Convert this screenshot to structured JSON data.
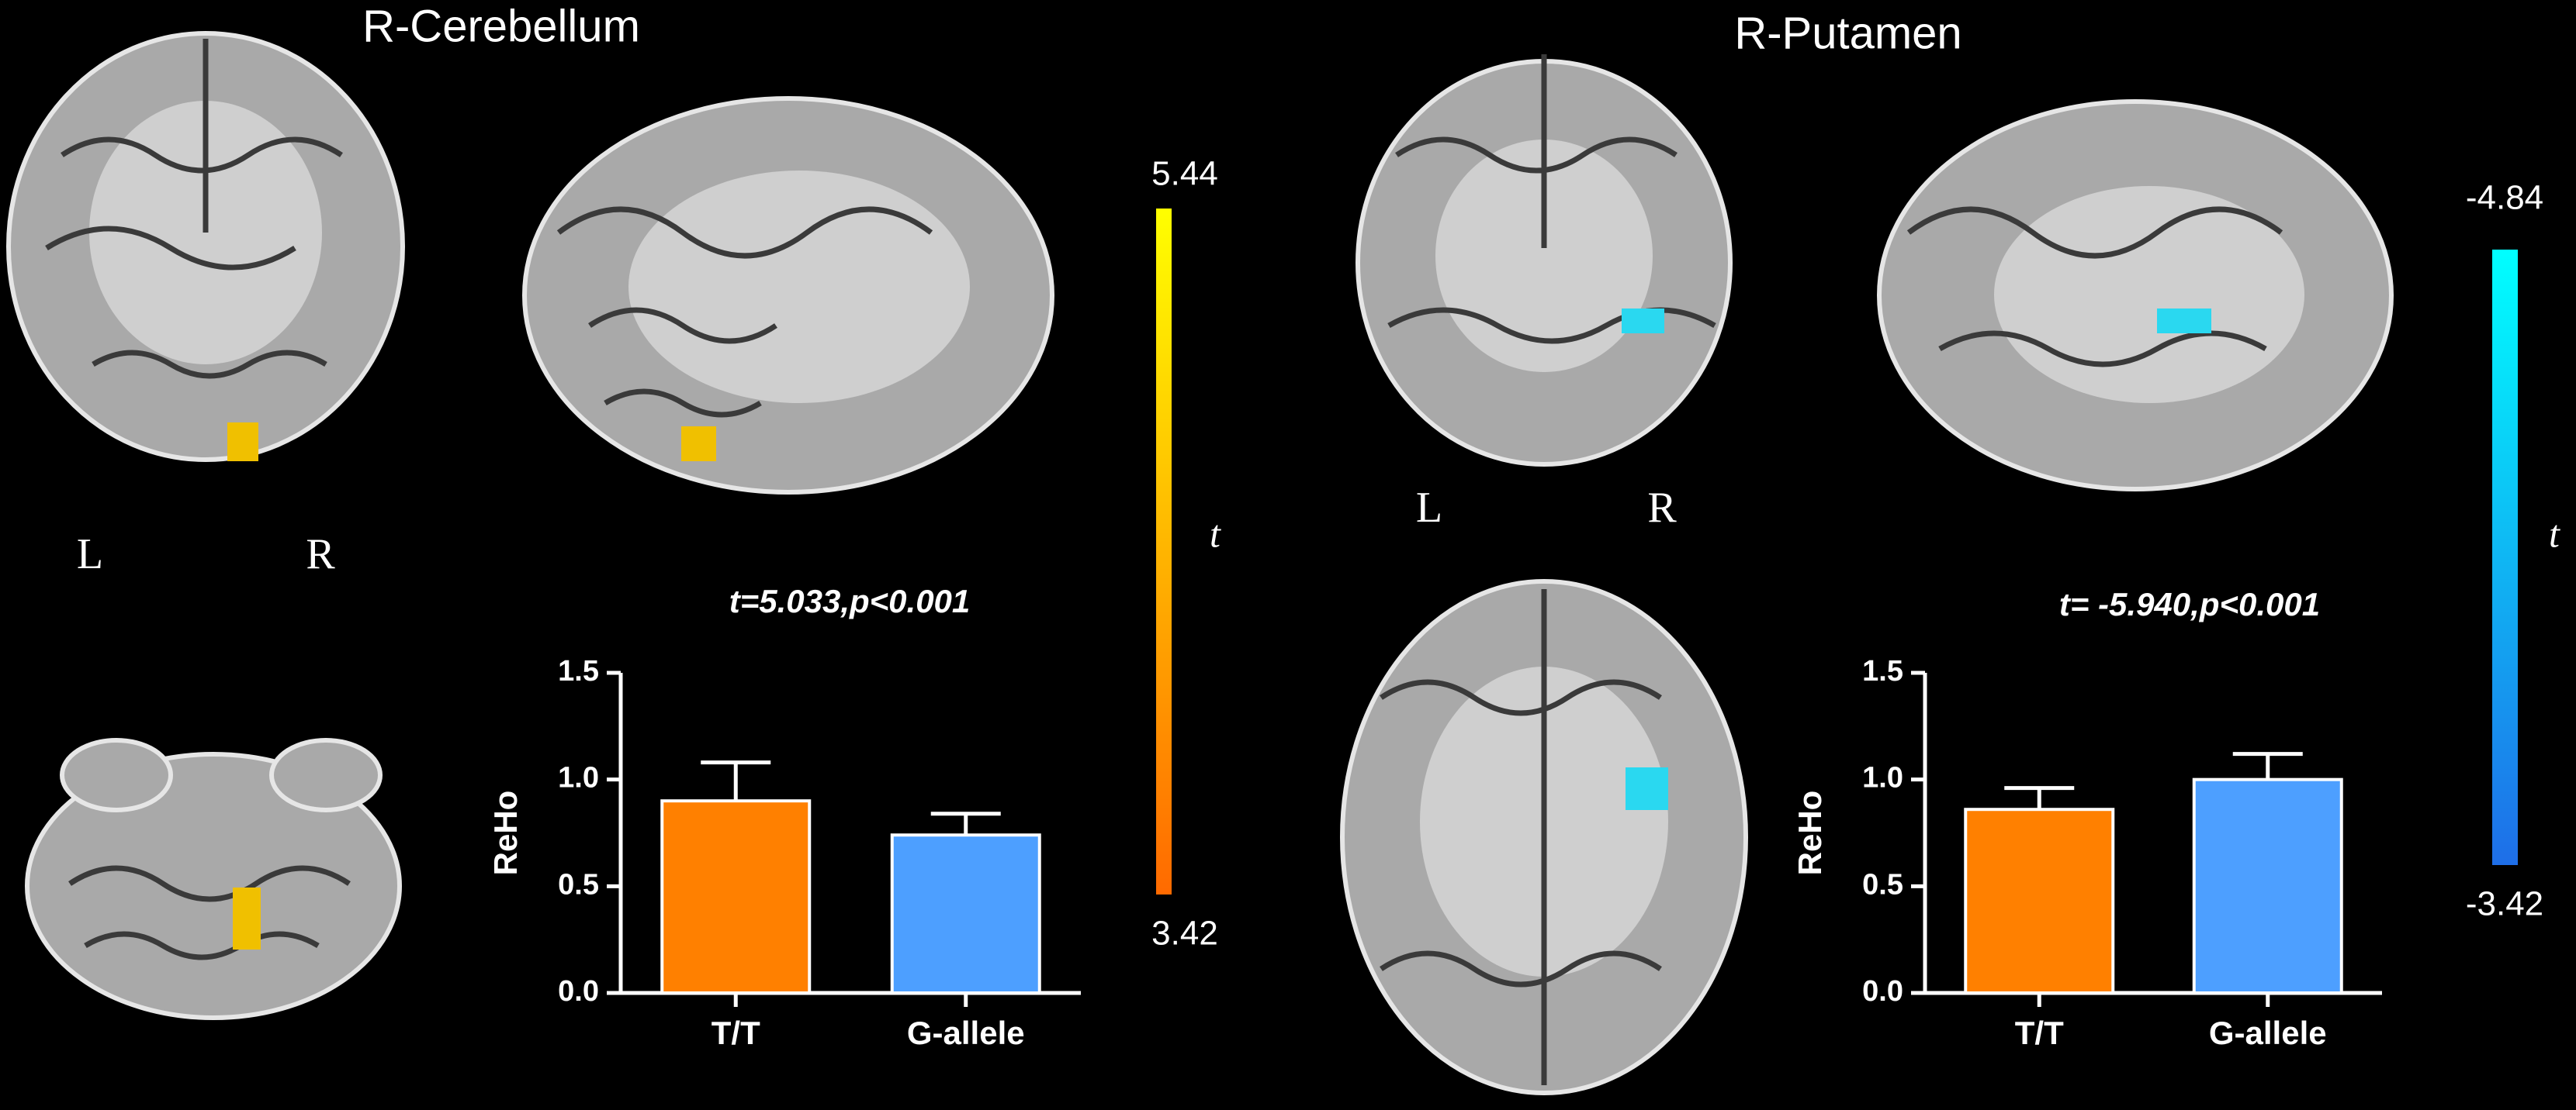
{
  "chart_data": [
    {
      "type": "bar",
      "title": "R-Cerebellum",
      "annotation": "t=5.033,p<0.001",
      "orientation_labels": [
        "L",
        "R"
      ],
      "colorbar_ticks": [
        3.42,
        5.44
      ],
      "colorbar_colors": [
        "#ff6a00",
        "#ffff00"
      ],
      "colorbar_label": "t",
      "ylabel": "ReHo",
      "categories": [
        "T/T",
        "G-allele"
      ],
      "values": [
        0.9,
        0.74
      ],
      "errors": [
        0.18,
        0.1
      ],
      "colors": [
        "#ff8000",
        "#4d9fff"
      ],
      "ylim": [
        0,
        1.5
      ],
      "yticks": [
        {
          "value": 0,
          "label": "0.0"
        },
        0.5,
        {
          "value": 1,
          "label": "1.0"
        },
        1.5
      ]
    },
    {
      "type": "bar",
      "title": "R-Putamen",
      "annotation": "t= -5.940,p<0.001",
      "orientation_labels": [
        "L",
        "R"
      ],
      "colorbar_ticks": [
        -3.42,
        -4.84
      ],
      "colorbar_colors": [
        "#1e6ee8",
        "#00ffff"
      ],
      "colorbar_label": "t",
      "ylabel": "ReHo",
      "categories": [
        "T/T",
        "G-allele"
      ],
      "values": [
        0.86,
        1.0
      ],
      "errors": [
        0.1,
        0.12
      ],
      "colors": [
        "#ff8000",
        "#4d9fff"
      ],
      "ylim": [
        0,
        1.5
      ],
      "yticks": [
        {
          "value": 0,
          "label": "0.0"
        },
        0.5,
        {
          "value": 1,
          "label": "1.0"
        },
        1.5
      ]
    }
  ]
}
